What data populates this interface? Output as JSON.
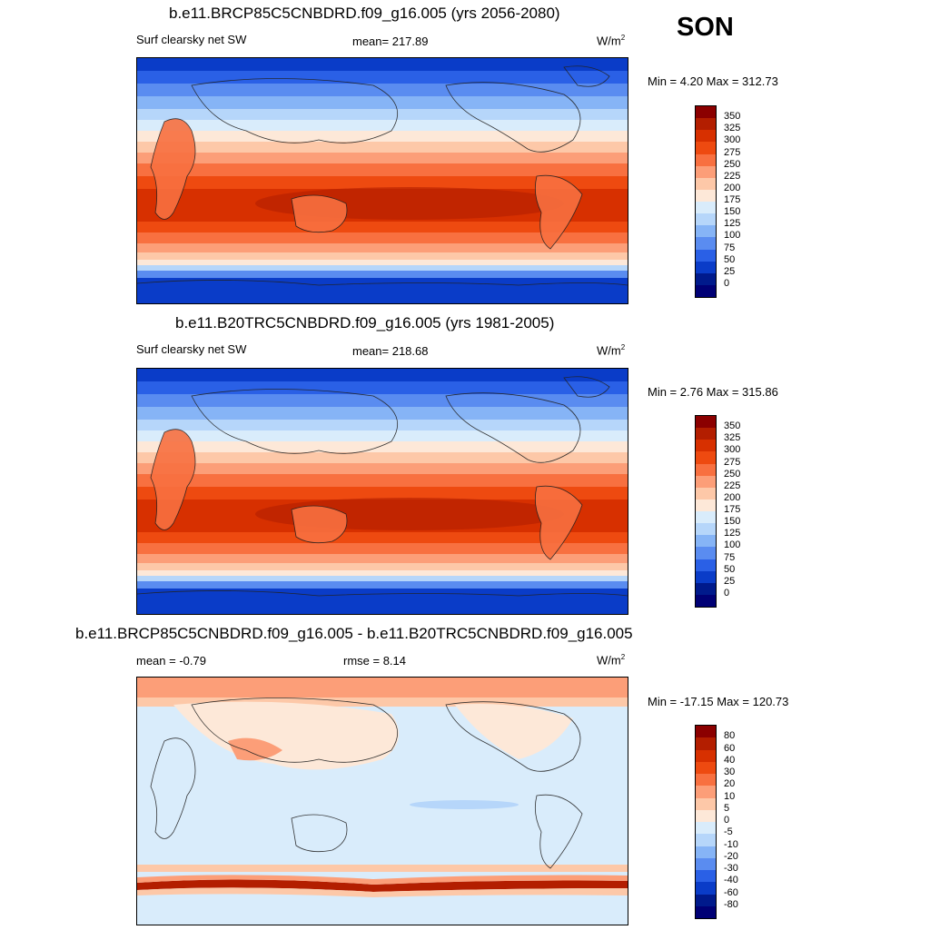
{
  "season": "SON",
  "panels": [
    {
      "title": "b.e11.BRCP85C5CNBDRD.f09_g16.005 (yrs 2056-2080)",
      "left_label": "Surf clearsky net SW",
      "center_label": "mean= 217.89",
      "units": "W/m",
      "units_sup": "2",
      "minmax": "Min =   4.20 Max = 312.73",
      "colorbar": {
        "levels": [
          "350",
          "325",
          "300",
          "275",
          "250",
          "225",
          "200",
          "175",
          "150",
          "125",
          "100",
          "75",
          "50",
          "25",
          "0"
        ],
        "colors": [
          "#8b0000",
          "#b31e00",
          "#d73000",
          "#ee4a10",
          "#f87040",
          "#fc9e78",
          "#fdc8a8",
          "#fde8d8",
          "#d9ecfb",
          "#b6d6fa",
          "#86b4f6",
          "#5a8cf0",
          "#2a60e6",
          "#0a3cc8",
          "#001a8c",
          "#000075"
        ]
      }
    },
    {
      "title": "b.e11.B20TRC5CNBDRD.f09_g16.005 (yrs 1981-2005)",
      "left_label": "Surf clearsky net SW",
      "center_label": "mean= 218.68",
      "units": "W/m",
      "units_sup": "2",
      "minmax": "Min =   2.76 Max = 315.86",
      "colorbar": {
        "levels": [
          "350",
          "325",
          "300",
          "275",
          "250",
          "225",
          "200",
          "175",
          "150",
          "125",
          "100",
          "75",
          "50",
          "25",
          "0"
        ],
        "colors": [
          "#8b0000",
          "#b31e00",
          "#d73000",
          "#ee4a10",
          "#f87040",
          "#fc9e78",
          "#fdc8a8",
          "#fde8d8",
          "#d9ecfb",
          "#b6d6fa",
          "#86b4f6",
          "#5a8cf0",
          "#2a60e6",
          "#0a3cc8",
          "#001a8c",
          "#000075"
        ]
      }
    },
    {
      "title": "b.e11.BRCP85C5CNBDRD.f09_g16.005 - b.e11.B20TRC5CNBDRD.f09_g16.005",
      "left_label": "mean =  -0.79",
      "center_label": "rmse =   8.14",
      "units": "W/m",
      "units_sup": "2",
      "minmax": "Min = -17.15 Max = 120.73",
      "colorbar": {
        "levels": [
          "80",
          "60",
          "40",
          "30",
          "20",
          "10",
          "5",
          "0",
          "-5",
          "-10",
          "-20",
          "-30",
          "-40",
          "-60",
          "-80"
        ],
        "colors": [
          "#8b0000",
          "#b31e00",
          "#d73000",
          "#ee4a10",
          "#f87040",
          "#fc9e78",
          "#fdc8a8",
          "#fde8d8",
          "#d9ecfb",
          "#b6d6fa",
          "#86b4f6",
          "#5a8cf0",
          "#2a60e6",
          "#0a3cc8",
          "#001a8c",
          "#000075"
        ]
      }
    }
  ]
}
